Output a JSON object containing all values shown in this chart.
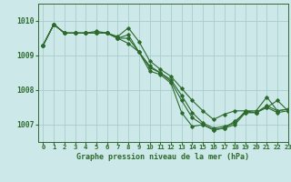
{
  "background_color": "#cce8e8",
  "grid_color": "#aacccc",
  "line_color": "#2d6a2d",
  "title": "Graphe pression niveau de la mer (hPa)",
  "xlim": [
    -0.5,
    23
  ],
  "ylim": [
    1006.5,
    1010.5
  ],
  "yticks": [
    1007,
    1008,
    1009,
    1010
  ],
  "xtick_labels": [
    "0",
    "1",
    "2",
    "3",
    "4",
    "5",
    "6",
    "7",
    "8",
    "9",
    "10",
    "11",
    "12",
    "13",
    "14",
    "15",
    "16",
    "17",
    "18",
    "19",
    "20",
    "21",
    "22",
    "23"
  ],
  "xticks": [
    0,
    1,
    2,
    3,
    4,
    5,
    6,
    7,
    8,
    9,
    10,
    11,
    12,
    13,
    14,
    15,
    16,
    17,
    18,
    19,
    20,
    21,
    22,
    23
  ],
  "series": [
    [
      1009.3,
      1009.9,
      1009.65,
      1009.65,
      1009.65,
      1009.7,
      1009.65,
      1009.55,
      1009.8,
      1009.4,
      1008.85,
      1008.6,
      1008.4,
      1008.05,
      1007.7,
      1007.4,
      1007.15,
      1007.3,
      1007.4,
      1007.4,
      1007.4,
      1007.8,
      1007.4,
      1007.45
    ],
    [
      1009.3,
      1009.9,
      1009.65,
      1009.65,
      1009.65,
      1009.65,
      1009.65,
      1009.5,
      1009.6,
      1009.1,
      1008.7,
      1008.5,
      1008.3,
      1007.85,
      1007.35,
      1007.05,
      1006.9,
      1006.95,
      1007.05,
      1007.4,
      1007.35,
      1007.55,
      1007.4,
      1007.45
    ],
    [
      1009.3,
      1009.9,
      1009.65,
      1009.65,
      1009.65,
      1009.65,
      1009.65,
      1009.5,
      1009.5,
      1009.1,
      1008.65,
      1008.5,
      1008.25,
      1007.7,
      1007.2,
      1007.0,
      1006.85,
      1006.9,
      1007.0,
      1007.35,
      1007.35,
      1007.5,
      1007.35,
      1007.4
    ],
    [
      1009.3,
      1009.9,
      1009.65,
      1009.65,
      1009.65,
      1009.65,
      1009.65,
      1009.5,
      1009.35,
      1009.1,
      1008.55,
      1008.45,
      1008.2,
      1007.35,
      1006.95,
      1007.0,
      1006.85,
      1006.9,
      1007.1,
      1007.35,
      1007.35,
      1007.5,
      1007.7,
      1007.4
    ]
  ]
}
